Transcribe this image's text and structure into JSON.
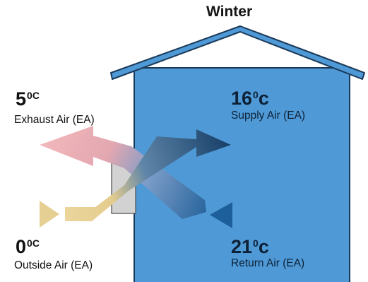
{
  "title": "Winter",
  "exhaust_air": {
    "temp_value": "5",
    "temp_unit": "0C",
    "label": "Exhaust Air (EA)"
  },
  "supply_air": {
    "temp_value": "16",
    "temp_unit": "0",
    "temp_suffix": "c",
    "label": "Supply Air (EA)"
  },
  "outside_air": {
    "temp_value": "0",
    "temp_unit": "0C",
    "label": "Outside Air (EA)"
  },
  "return_air": {
    "temp_value": "21",
    "temp_unit": "0",
    "temp_suffix": "c",
    "label": "Return Air (EA)"
  },
  "colors": {
    "house_wall": "#4f9ad6",
    "house_outline": "#1b3a5a",
    "heat_exchanger": "#d2d2d2",
    "exhaust_arrow": "#e8a6a6",
    "outside_arrow": "#e6cf93",
    "supply_arrow": "#1d4f7d",
    "return_arrow": "#1d5f9b"
  }
}
